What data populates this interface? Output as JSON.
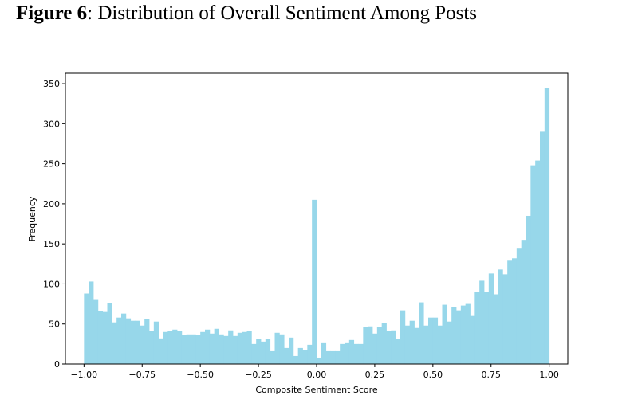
{
  "caption": {
    "label": "Figure 6",
    "text": ": Distribution of Overall Sentiment Among Posts"
  },
  "chart_data": {
    "type": "bar",
    "subtype": "histogram",
    "xlabel": "Composite Sentiment Score",
    "ylabel": "Frequency",
    "xlim": [
      -1.08,
      1.08
    ],
    "ylim": [
      0,
      363
    ],
    "xticks": [
      -1.0,
      -0.75,
      -0.5,
      -0.25,
      0.0,
      0.25,
      0.5,
      0.75,
      1.0
    ],
    "xtick_labels": [
      "−1.00",
      "−0.75",
      "−0.50",
      "−0.25",
      "0.00",
      "0.25",
      "0.50",
      "0.75",
      "1.00"
    ],
    "yticks": [
      0,
      50,
      100,
      150,
      200,
      250,
      300,
      350
    ],
    "ytick_labels": [
      "0",
      "50",
      "100",
      "150",
      "200",
      "250",
      "300",
      "350"
    ],
    "bin_start": -1.0,
    "bin_width": 0.02,
    "bar_color": "#97d7ea",
    "grid": false,
    "values": [
      88,
      103,
      80,
      66,
      65,
      76,
      52,
      58,
      63,
      57,
      54,
      54,
      48,
      56,
      41,
      53,
      32,
      40,
      41,
      43,
      41,
      36,
      37,
      37,
      36,
      40,
      43,
      38,
      44,
      37,
      35,
      42,
      35,
      39,
      40,
      41,
      25,
      31,
      28,
      31,
      16,
      39,
      37,
      20,
      33,
      10,
      20,
      17,
      24,
      205,
      8,
      27,
      16,
      16,
      16,
      25,
      27,
      30,
      25,
      25,
      46,
      47,
      38,
      46,
      51,
      41,
      42,
      31,
      67,
      48,
      54,
      45,
      77,
      48,
      58,
      58,
      48,
      74,
      53,
      71,
      67,
      73,
      75,
      60,
      90,
      104,
      90,
      113,
      87,
      118,
      112,
      129,
      132,
      145,
      155,
      185,
      248,
      254,
      290,
      345
    ]
  }
}
